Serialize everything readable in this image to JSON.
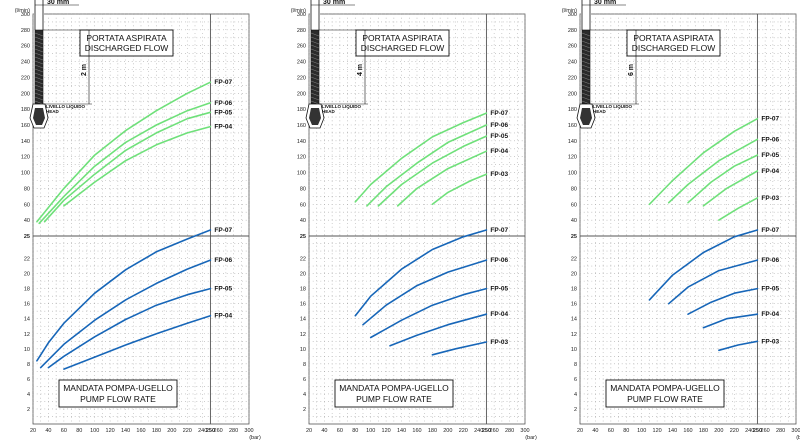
{
  "chart_data": [
    {
      "type": "line",
      "pipe_width": "30 mm",
      "depth": "2 m",
      "level_label_1": "LIVELLO LIQUIDO",
      "level_label_2": "HEAD",
      "top_unit": "(l/min)",
      "bottom_unit": "(bar)",
      "top_title_1": "PORTATA ASPIRATA",
      "top_title_2": "DISCHARGED FLOW",
      "bottom_title_1": "MANDATA POMPA-UGELLO",
      "bottom_title_2": "PUMP FLOW RATE",
      "x_ticks": [
        20,
        40,
        60,
        80,
        100,
        120,
        140,
        160,
        180,
        200,
        220,
        240,
        250,
        260,
        280,
        300
      ],
      "top_y_ticks": [
        300,
        280,
        260,
        240,
        220,
        200,
        180,
        160,
        140,
        120,
        100,
        80,
        60,
        40
      ],
      "bottom_y_ticks": [
        25,
        22,
        20,
        18,
        16,
        14,
        12,
        10,
        8,
        6,
        4,
        2
      ],
      "top_series": [
        {
          "name": "FP-07",
          "x": [
            25,
            60,
            100,
            140,
            180,
            220,
            250
          ],
          "y": [
            38,
            80,
            122,
            153,
            178,
            200,
            214
          ]
        },
        {
          "name": "FP-06",
          "x": [
            28,
            60,
            100,
            140,
            180,
            220,
            250
          ],
          "y": [
            36,
            70,
            108,
            138,
            160,
            178,
            188
          ]
        },
        {
          "name": "FP-05",
          "x": [
            35,
            60,
            100,
            140,
            180,
            220,
            250
          ],
          "y": [
            38,
            65,
            98,
            128,
            150,
            168,
            176
          ]
        },
        {
          "name": "FP-04",
          "x": [
            60,
            100,
            140,
            180,
            220,
            250
          ],
          "y": [
            58,
            88,
            115,
            135,
            150,
            158
          ]
        }
      ],
      "bottom_series": [
        {
          "name": "FP-07",
          "x": [
            25,
            40,
            60,
            100,
            140,
            180,
            220,
            250
          ],
          "y": [
            8.4,
            10.8,
            13.4,
            17.4,
            20.5,
            22.9,
            24.6,
            25.8
          ]
        },
        {
          "name": "FP-06",
          "x": [
            30,
            60,
            100,
            140,
            180,
            220,
            250
          ],
          "y": [
            7.5,
            10.6,
            13.8,
            16.5,
            18.7,
            20.6,
            21.8
          ]
        },
        {
          "name": "FP-05",
          "x": [
            40,
            60,
            100,
            140,
            180,
            220,
            250
          ],
          "y": [
            7.5,
            9.0,
            11.6,
            13.9,
            15.8,
            17.2,
            18.0
          ]
        },
        {
          "name": "FP-04",
          "x": [
            60,
            100,
            140,
            180,
            220,
            250
          ],
          "y": [
            7.3,
            8.9,
            10.5,
            12.0,
            13.4,
            14.4
          ]
        }
      ]
    },
    {
      "type": "line",
      "pipe_width": "30 mm",
      "depth": "4 m",
      "level_label_1": "LIVELLO LIQUIDO",
      "level_label_2": "HEAD",
      "top_unit": "(l/min)",
      "bottom_unit": "(bar)",
      "top_title_1": "PORTATA ASPIRATA",
      "top_title_2": "DISCHARGED FLOW",
      "bottom_title_1": "MANDATA POMPA-UGELLO",
      "bottom_title_2": "PUMP FLOW RATE",
      "x_ticks": [
        20,
        40,
        60,
        80,
        100,
        120,
        140,
        160,
        180,
        200,
        220,
        240,
        250,
        260,
        280,
        300
      ],
      "top_y_ticks": [
        300,
        280,
        260,
        240,
        220,
        200,
        180,
        160,
        140,
        120,
        100,
        80,
        60,
        40
      ],
      "bottom_y_ticks": [
        25,
        22,
        20,
        18,
        16,
        14,
        12,
        10,
        8,
        6,
        4,
        2
      ],
      "top_series": [
        {
          "name": "FP-07",
          "x": [
            80,
            100,
            140,
            180,
            220,
            250
          ],
          "y": [
            63,
            85,
            118,
            145,
            163,
            175
          ]
        },
        {
          "name": "FP-06",
          "x": [
            95,
            120,
            160,
            200,
            250
          ],
          "y": [
            58,
            82,
            112,
            138,
            160
          ]
        },
        {
          "name": "FP-05",
          "x": [
            110,
            140,
            180,
            220,
            250
          ],
          "y": [
            58,
            85,
            112,
            133,
            146
          ]
        },
        {
          "name": "FP-04",
          "x": [
            135,
            160,
            200,
            250
          ],
          "y": [
            58,
            80,
            105,
            127
          ]
        },
        {
          "name": "FP-03",
          "x": [
            180,
            200,
            230,
            250
          ],
          "y": [
            60,
            75,
            90,
            98
          ]
        }
      ],
      "bottom_series": [
        {
          "name": "FP-07",
          "x": [
            80,
            100,
            140,
            180,
            220,
            250
          ],
          "y": [
            14.4,
            17.0,
            20.6,
            23.2,
            24.9,
            25.8
          ]
        },
        {
          "name": "FP-06",
          "x": [
            90,
            120,
            160,
            200,
            250
          ],
          "y": [
            13.2,
            15.8,
            18.4,
            20.2,
            21.8
          ]
        },
        {
          "name": "FP-05",
          "x": [
            100,
            140,
            180,
            220,
            250
          ],
          "y": [
            11.5,
            13.8,
            15.8,
            17.2,
            18.0
          ]
        },
        {
          "name": "FP-04",
          "x": [
            125,
            160,
            200,
            250
          ],
          "y": [
            10.4,
            11.8,
            13.2,
            14.6
          ]
        },
        {
          "name": "FP-03",
          "x": [
            180,
            210,
            250
          ],
          "y": [
            9.2,
            10.0,
            10.9
          ]
        }
      ]
    },
    {
      "type": "line",
      "pipe_width": "30 mm",
      "depth": "6 m",
      "level_label_1": "LIVELLO LIQUIDO",
      "level_label_2": "HEAD",
      "top_unit": "(l/min)",
      "bottom_unit": "(bar)",
      "top_title_1": "PORTATA ASPIRATA",
      "top_title_2": "DISCHARGED FLOW",
      "bottom_title_1": "MANDATA POMPA-UGELLO",
      "bottom_title_2": "PUMP FLOW RATE",
      "x_ticks": [
        20,
        40,
        60,
        80,
        100,
        120,
        140,
        160,
        180,
        200,
        220,
        240,
        250,
        260,
        280,
        300
      ],
      "top_y_ticks": [
        300,
        280,
        260,
        240,
        220,
        200,
        180,
        160,
        140,
        120,
        100,
        80,
        60,
        40
      ],
      "bottom_y_ticks": [
        25,
        22,
        20,
        18,
        16,
        14,
        12,
        10,
        8,
        6,
        4,
        2
      ],
      "top_series": [
        {
          "name": "FP-07",
          "x": [
            110,
            140,
            180,
            220,
            250
          ],
          "y": [
            60,
            90,
            125,
            152,
            168
          ]
        },
        {
          "name": "FP-06",
          "x": [
            135,
            160,
            200,
            250
          ],
          "y": [
            62,
            85,
            115,
            142
          ]
        },
        {
          "name": "FP-05",
          "x": [
            160,
            190,
            220,
            250
          ],
          "y": [
            62,
            88,
            108,
            122
          ]
        },
        {
          "name": "FP-04",
          "x": [
            180,
            210,
            250
          ],
          "y": [
            58,
            80,
            102
          ]
        },
        {
          "name": "FP-03",
          "x": [
            200,
            225,
            250
          ],
          "y": [
            40,
            55,
            68
          ]
        }
      ],
      "bottom_series": [
        {
          "name": "FP-07",
          "x": [
            110,
            140,
            180,
            220,
            250
          ],
          "y": [
            16.5,
            19.8,
            22.8,
            24.9,
            25.8
          ]
        },
        {
          "name": "FP-06",
          "x": [
            135,
            160,
            200,
            250
          ],
          "y": [
            16.0,
            18.2,
            20.4,
            21.8
          ]
        },
        {
          "name": "FP-05",
          "x": [
            160,
            190,
            220,
            250
          ],
          "y": [
            14.6,
            16.2,
            17.4,
            18.0
          ]
        },
        {
          "name": "FP-04",
          "x": [
            180,
            210,
            250
          ],
          "y": [
            12.8,
            14.0,
            14.6
          ]
        },
        {
          "name": "FP-03",
          "x": [
            200,
            225,
            250
          ],
          "y": [
            9.8,
            10.5,
            11.0
          ]
        }
      ]
    }
  ],
  "colors": {
    "top_curve": "#6fe07a",
    "bottom_curve": "#1766b8",
    "grid": "#9a9a9a",
    "frame": "#555555"
  }
}
